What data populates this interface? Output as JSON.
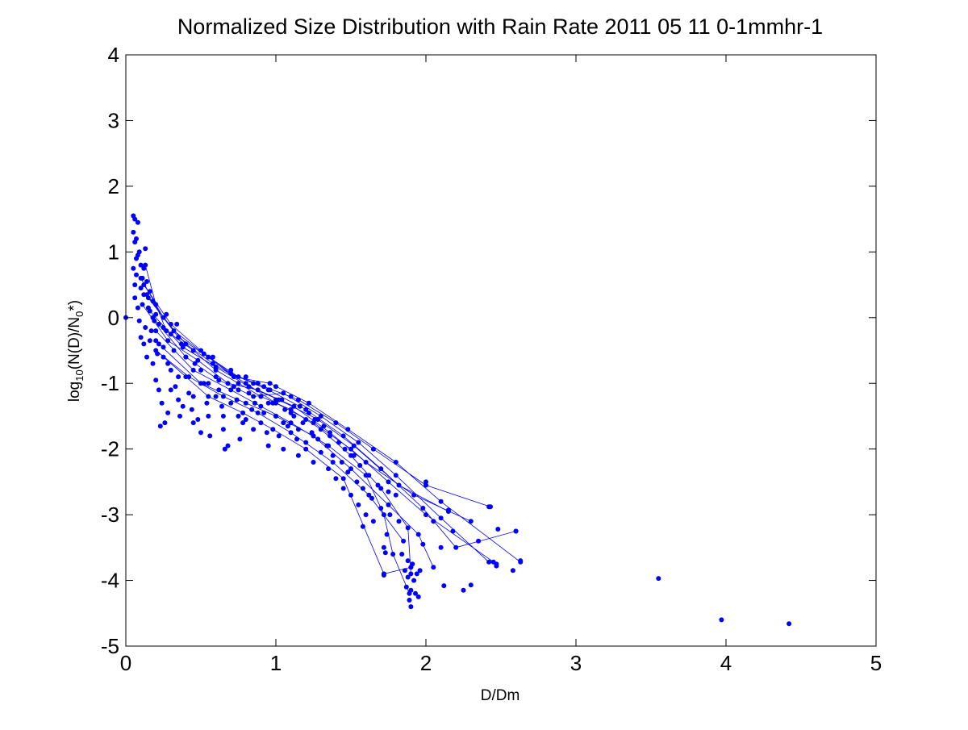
{
  "chart_data": {
    "type": "scatter",
    "title": "Normalized Size Distribution with Rain Rate 2011 05 11 0-1mmhr-1",
    "xlabel": "D/Dm",
    "ylabel": {
      "prefix": "log",
      "sub1": "10",
      "mid": "(N(D)/N",
      "sub2": "0",
      "suffix": "*)"
    },
    "xlim": [
      0,
      5
    ],
    "ylim": [
      -5,
      4
    ],
    "xticks": [
      "0",
      "1",
      "2",
      "3",
      "4",
      "5"
    ],
    "yticks": [
      "4",
      "3",
      "2",
      "1",
      "0",
      "-1",
      "-2",
      "-3",
      "-4",
      "-5"
    ],
    "grid": false,
    "series_color": "#0000ff",
    "marker": "filled-circle",
    "line_segments": [
      [
        [
          0.13,
          0.8
        ],
        [
          0.2,
          0.2
        ],
        [
          0.27,
          -0.2
        ],
        [
          0.45,
          -0.5
        ],
        [
          0.6,
          -0.8
        ],
        [
          0.75,
          -1.0
        ],
        [
          0.9,
          -1.2
        ],
        [
          1.1,
          -1.4
        ],
        [
          1.3,
          -1.7
        ],
        [
          1.5,
          -2.1
        ],
        [
          1.7,
          -2.6
        ],
        [
          1.88,
          -3.2
        ],
        [
          1.9,
          -3.9
        ]
      ],
      [
        [
          0.1,
          0.6
        ],
        [
          0.25,
          0.0
        ],
        [
          0.4,
          -0.4
        ],
        [
          0.58,
          -0.7
        ],
        [
          0.8,
          -1.0
        ],
        [
          1.0,
          -1.3
        ],
        [
          1.25,
          -1.6
        ],
        [
          1.5,
          -2.0
        ],
        [
          1.75,
          -2.5
        ],
        [
          2.0,
          -3.0
        ],
        [
          2.47,
          -3.75
        ]
      ],
      [
        [
          0.15,
          0.3
        ],
        [
          0.35,
          -0.3
        ],
        [
          0.55,
          -0.6
        ],
        [
          0.75,
          -0.9
        ],
        [
          0.95,
          -1.1
        ],
        [
          1.2,
          -1.4
        ],
        [
          1.45,
          -1.8
        ],
        [
          1.7,
          -2.3
        ],
        [
          1.98,
          -2.9
        ],
        [
          2.2,
          -3.5
        ],
        [
          2.6,
          -3.25
        ]
      ],
      [
        [
          0.18,
          0.0
        ],
        [
          0.4,
          -0.6
        ],
        [
          0.62,
          -0.95
        ],
        [
          0.85,
          -1.2
        ],
        [
          1.05,
          -1.15
        ],
        [
          1.3,
          -1.5
        ],
        [
          1.55,
          -1.9
        ],
        [
          1.8,
          -2.4
        ],
        [
          2.1,
          -3.05
        ],
        [
          2.42,
          -3.72
        ]
      ],
      [
        [
          0.2,
          -0.2
        ],
        [
          0.45,
          -0.8
        ],
        [
          0.7,
          -1.1
        ],
        [
          0.9,
          -1.35
        ],
        [
          1.1,
          -1.6
        ],
        [
          1.35,
          -1.95
        ],
        [
          1.6,
          -2.4
        ],
        [
          1.72,
          -3.0
        ],
        [
          1.78,
          -3.6
        ],
        [
          1.89,
          -4.2
        ]
      ],
      [
        [
          0.12,
          0.5
        ],
        [
          0.3,
          -0.1
        ],
        [
          0.5,
          -0.5
        ],
        [
          0.7,
          -0.85
        ],
        [
          0.92,
          -1.05
        ],
        [
          1.15,
          -1.25
        ],
        [
          1.4,
          -1.6
        ],
        [
          1.65,
          -2.0
        ],
        [
          2.0,
          -2.55
        ],
        [
          2.43,
          -2.88
        ]
      ],
      [
        [
          0.22,
          -0.4
        ],
        [
          0.5,
          -1.0
        ],
        [
          0.8,
          -1.3
        ],
        [
          1.0,
          -1.5
        ],
        [
          1.25,
          -1.8
        ],
        [
          1.5,
          -2.3
        ],
        [
          1.75,
          -2.85
        ],
        [
          1.95,
          -3.3
        ],
        [
          2.05,
          -3.8
        ]
      ],
      [
        [
          0.16,
          0.1
        ],
        [
          0.38,
          -0.45
        ],
        [
          0.6,
          -0.75
        ],
        [
          0.82,
          -1.05
        ],
        [
          1.02,
          -1.25
        ],
        [
          1.28,
          -1.55
        ],
        [
          1.52,
          -1.95
        ],
        [
          1.82,
          -2.55
        ],
        [
          2.15,
          -2.95
        ]
      ],
      [
        [
          0.25,
          -0.6
        ],
        [
          0.55,
          -1.2
        ],
        [
          0.78,
          -1.45
        ],
        [
          0.98,
          -1.7
        ],
        [
          1.2,
          -2.0
        ],
        [
          1.45,
          -2.45
        ],
        [
          1.72,
          -3.9
        ],
        [
          1.9,
          -3.8
        ]
      ],
      [
        [
          0.14,
          0.35
        ],
        [
          0.32,
          -0.2
        ],
        [
          0.52,
          -0.55
        ],
        [
          0.72,
          -0.9
        ],
        [
          0.96,
          -1.0
        ],
        [
          1.22,
          -1.3
        ],
        [
          1.48,
          -1.7
        ],
        [
          1.8,
          -2.2
        ],
        [
          2.1,
          -2.8
        ],
        [
          2.63,
          -3.72
        ]
      ],
      [
        [
          0.2,
          -0.5
        ],
        [
          0.42,
          -0.9
        ],
        [
          0.65,
          -1.2
        ],
        [
          0.88,
          -1.45
        ],
        [
          1.1,
          -1.75
        ],
        [
          1.38,
          -2.2
        ],
        [
          1.62,
          -2.7
        ],
        [
          1.85,
          -3.4
        ]
      ],
      [
        [
          0.11,
          0.2
        ],
        [
          0.28,
          -0.35
        ],
        [
          0.48,
          -0.65
        ],
        [
          0.68,
          -1.0
        ],
        [
          0.88,
          -1.1
        ],
        [
          1.12,
          -1.35
        ],
        [
          1.36,
          -1.75
        ],
        [
          1.6,
          -2.2
        ],
        [
          1.92,
          -2.7
        ],
        [
          2.3,
          -3.1
        ]
      ]
    ],
    "points": [
      [
        0.0,
        0.0
      ],
      [
        0.05,
        1.55
      ],
      [
        0.06,
        1.5
      ],
      [
        0.05,
        1.3
      ],
      [
        0.07,
        1.2
      ],
      [
        0.08,
        1.45
      ],
      [
        0.06,
        1.15
      ],
      [
        0.05,
        0.75
      ],
      [
        0.07,
        0.65
      ],
      [
        0.06,
        0.5
      ],
      [
        0.09,
        1.0
      ],
      [
        0.1,
        0.8
      ],
      [
        0.12,
        0.75
      ],
      [
        0.13,
        1.05
      ],
      [
        0.08,
        0.95
      ],
      [
        0.1,
        0.45
      ],
      [
        0.06,
        0.3
      ],
      [
        0.08,
        0.15
      ],
      [
        0.09,
        -0.05
      ],
      [
        0.1,
        -0.3
      ],
      [
        0.07,
        0.9
      ],
      [
        0.11,
        0.6
      ],
      [
        0.12,
        0.35
      ],
      [
        0.14,
        0.55
      ],
      [
        0.16,
        0.4
      ],
      [
        0.15,
        0.15
      ],
      [
        0.13,
        -0.15
      ],
      [
        0.12,
        -0.4
      ],
      [
        0.14,
        -0.6
      ],
      [
        0.17,
        -0.2
      ],
      [
        0.18,
        0.25
      ],
      [
        0.19,
        -0.05
      ],
      [
        0.2,
        -0.35
      ],
      [
        0.18,
        -0.7
      ],
      [
        0.2,
        -0.95
      ],
      [
        0.22,
        -1.1
      ],
      [
        0.24,
        -1.3
      ],
      [
        0.26,
        -1.6
      ],
      [
        0.23,
        -1.65
      ],
      [
        0.28,
        -1.45
      ],
      [
        0.21,
        -0.55
      ],
      [
        0.25,
        -0.15
      ],
      [
        0.27,
        0.05
      ],
      [
        0.3,
        -0.25
      ],
      [
        0.32,
        -0.5
      ],
      [
        0.3,
        -0.8
      ],
      [
        0.33,
        -1.05
      ],
      [
        0.35,
        -1.25
      ],
      [
        0.36,
        -1.5
      ],
      [
        0.38,
        -1.35
      ],
      [
        0.34,
        -0.1
      ],
      [
        0.37,
        -0.4
      ],
      [
        0.4,
        -0.6
      ],
      [
        0.4,
        -0.9
      ],
      [
        0.42,
        -1.15
      ],
      [
        0.44,
        -1.4
      ],
      [
        0.45,
        -1.6
      ],
      [
        0.48,
        -1.55
      ],
      [
        0.46,
        -0.7
      ],
      [
        0.5,
        -0.8
      ],
      [
        0.52,
        -1.0
      ],
      [
        0.54,
        -1.3
      ],
      [
        0.55,
        -1.5
      ],
      [
        0.56,
        -1.8
      ],
      [
        0.5,
        -1.75
      ],
      [
        0.58,
        -0.6
      ],
      [
        0.6,
        -0.9
      ],
      [
        0.62,
        -1.1
      ],
      [
        0.64,
        -1.35
      ],
      [
        0.65,
        -1.7
      ],
      [
        0.66,
        -2.0
      ],
      [
        0.68,
        -1.95
      ],
      [
        0.7,
        -0.8
      ],
      [
        0.72,
        -1.05
      ],
      [
        0.74,
        -1.25
      ],
      [
        0.75,
        -1.5
      ],
      [
        0.76,
        -1.85
      ],
      [
        0.78,
        -1.6
      ],
      [
        0.8,
        -0.9
      ],
      [
        0.82,
        -1.15
      ],
      [
        0.84,
        -1.4
      ],
      [
        0.85,
        -1.7
      ],
      [
        0.86,
        -1.3
      ],
      [
        0.88,
        -1.0
      ],
      [
        0.9,
        -1.2
      ],
      [
        0.92,
        -1.45
      ],
      [
        0.94,
        -1.75
      ],
      [
        0.95,
        -1.95
      ],
      [
        0.96,
        -1.1
      ],
      [
        0.98,
        -1.3
      ],
      [
        1.0,
        -1.05
      ],
      [
        1.0,
        -1.5
      ],
      [
        1.02,
        -1.8
      ],
      [
        1.04,
        -1.25
      ],
      [
        1.05,
        -2.0
      ],
      [
        1.06,
        -1.4
      ],
      [
        1.08,
        -1.65
      ],
      [
        1.1,
        -1.2
      ],
      [
        1.12,
        -1.5
      ],
      [
        1.14,
        -1.85
      ],
      [
        1.15,
        -2.1
      ],
      [
        1.16,
        -1.35
      ],
      [
        1.18,
        -1.6
      ],
      [
        1.2,
        -1.9
      ],
      [
        1.22,
        -1.45
      ],
      [
        1.24,
        -1.75
      ],
      [
        1.25,
        -2.2
      ],
      [
        1.26,
        -1.55
      ],
      [
        1.28,
        -1.85
      ],
      [
        1.3,
        -2.05
      ],
      [
        1.32,
        -1.65
      ],
      [
        1.34,
        -1.95
      ],
      [
        1.35,
        -2.3
      ],
      [
        1.36,
        -1.8
      ],
      [
        1.38,
        -2.1
      ],
      [
        1.4,
        -2.45
      ],
      [
        1.42,
        -1.9
      ],
      [
        1.44,
        -2.2
      ],
      [
        1.45,
        -2.6
      ],
      [
        1.46,
        -2.0
      ],
      [
        1.48,
        -2.35
      ],
      [
        1.5,
        -2.7
      ],
      [
        1.52,
        -2.1
      ],
      [
        1.54,
        -2.5
      ],
      [
        1.55,
        -2.85
      ],
      [
        1.56,
        -2.25
      ],
      [
        1.58,
        -2.6
      ],
      [
        1.6,
        -3.0
      ],
      [
        1.62,
        -2.4
      ],
      [
        1.64,
        -2.75
      ],
      [
        1.65,
        -3.1
      ],
      [
        1.68,
        -2.55
      ],
      [
        1.7,
        -2.9
      ],
      [
        1.72,
        -3.5
      ],
      [
        1.74,
        -3.3
      ],
      [
        1.75,
        -2.65
      ],
      [
        1.76,
        -3.0
      ],
      [
        1.8,
        -2.7
      ],
      [
        1.82,
        -3.1
      ],
      [
        1.84,
        -3.6
      ],
      [
        1.58,
        -3.18
      ],
      [
        1.73,
        -3.58
      ],
      [
        1.72,
        -3.92
      ],
      [
        1.86,
        -3.85
      ],
      [
        1.87,
        -4.1
      ],
      [
        1.88,
        -3.95
      ],
      [
        1.89,
        -4.3
      ],
      [
        1.9,
        -4.4
      ],
      [
        1.9,
        -4.15
      ],
      [
        1.91,
        -3.75
      ],
      [
        1.92,
        -4.0
      ],
      [
        1.93,
        -4.2
      ],
      [
        1.94,
        -3.9
      ],
      [
        1.95,
        -4.25
      ],
      [
        1.88,
        -3.7
      ],
      [
        1.9,
        -3.8
      ],
      [
        1.96,
        -3.85
      ],
      [
        1.98,
        -3.45
      ],
      [
        2.0,
        -2.5
      ],
      [
        2.05,
        -3.1
      ],
      [
        2.1,
        -3.5
      ],
      [
        2.12,
        -4.08
      ],
      [
        2.15,
        -2.93
      ],
      [
        2.18,
        -3.25
      ],
      [
        2.25,
        -4.15
      ],
      [
        2.3,
        -4.07
      ],
      [
        2.35,
        -3.4
      ],
      [
        2.42,
        -2.88
      ],
      [
        2.45,
        -3.72
      ],
      [
        2.48,
        -3.22
      ],
      [
        2.47,
        -3.78
      ],
      [
        2.58,
        -3.85
      ],
      [
        2.6,
        -3.25
      ],
      [
        2.63,
        -3.7
      ],
      [
        3.55,
        -3.97
      ],
      [
        3.97,
        -4.6
      ],
      [
        4.42,
        -4.66
      ],
      [
        0.65,
        -1.5
      ],
      [
        0.7,
        -1.3
      ],
      [
        0.75,
        -1.1
      ],
      [
        0.8,
        -1.55
      ],
      [
        0.85,
        -1.0
      ],
      [
        0.9,
        -1.6
      ],
      [
        0.95,
        -1.3
      ],
      [
        1.0,
        -1.25
      ],
      [
        1.05,
        -1.6
      ],
      [
        1.1,
        -1.45
      ],
      [
        1.15,
        -1.7
      ],
      [
        1.2,
        -1.55
      ],
      [
        1.25,
        -1.8
      ],
      [
        0.6,
        -1.2
      ],
      [
        0.55,
        -1.0
      ],
      [
        0.45,
        -1.2
      ],
      [
        0.35,
        -0.9
      ],
      [
        0.3,
        -1.1
      ],
      [
        0.28,
        -0.7
      ],
      [
        0.25,
        -0.45
      ],
      [
        0.22,
        -0.1
      ],
      [
        0.2,
        0.05
      ],
      [
        0.16,
        -0.35
      ]
    ]
  }
}
